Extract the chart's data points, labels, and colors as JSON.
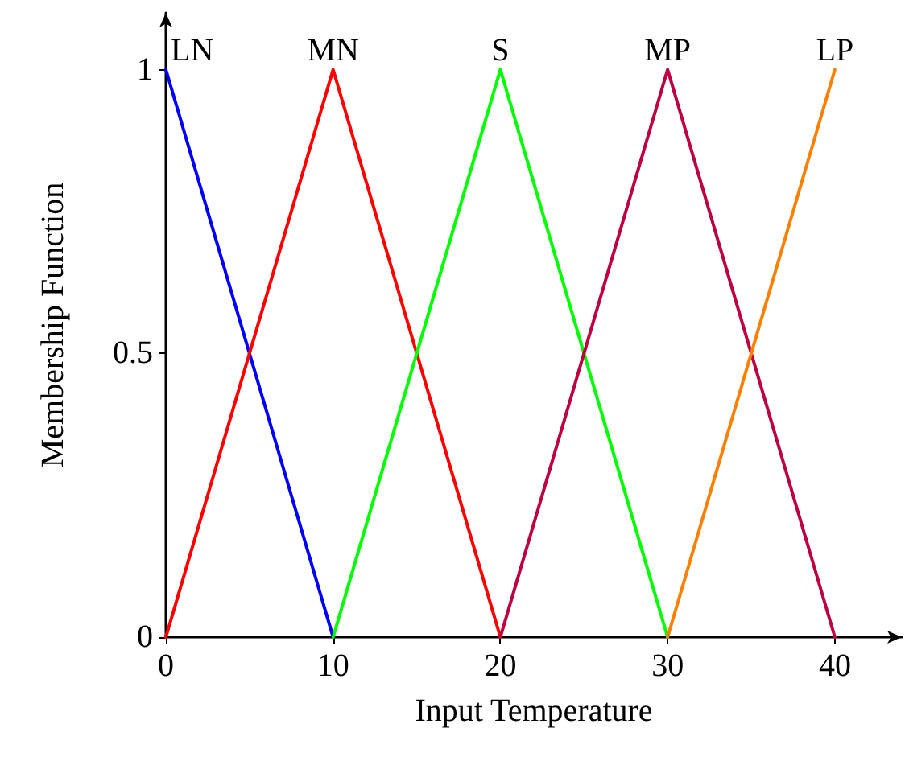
{
  "chart_data": {
    "type": "line",
    "xlabel": "Input Temperature",
    "ylabel": "Membership Function",
    "xlim": [
      0,
      44
    ],
    "xticks": [
      0,
      10,
      20,
      30,
      40
    ],
    "ylim": [
      0,
      1.1
    ],
    "yticks": [
      0,
      0.5,
      1
    ],
    "grid": false,
    "legend": false,
    "marker": "none",
    "line_style": "solid",
    "series": [
      {
        "name": "LN",
        "color": "#0000ff",
        "x": [
          0,
          10
        ],
        "values": [
          1,
          0
        ]
      },
      {
        "name": "MN",
        "color": "#ff0000",
        "x": [
          0,
          10,
          20
        ],
        "values": [
          0,
          1,
          0
        ]
      },
      {
        "name": "S",
        "color": "#00ff00",
        "x": [
          10,
          20,
          30
        ],
        "values": [
          0,
          1,
          0
        ]
      },
      {
        "name": "MP",
        "color": "#bf0040",
        "x": [
          20,
          30,
          40
        ],
        "values": [
          0,
          1,
          0
        ]
      },
      {
        "name": "LP",
        "color": "#ff8000",
        "x": [
          30,
          40
        ],
        "values": [
          0,
          1
        ]
      }
    ]
  }
}
